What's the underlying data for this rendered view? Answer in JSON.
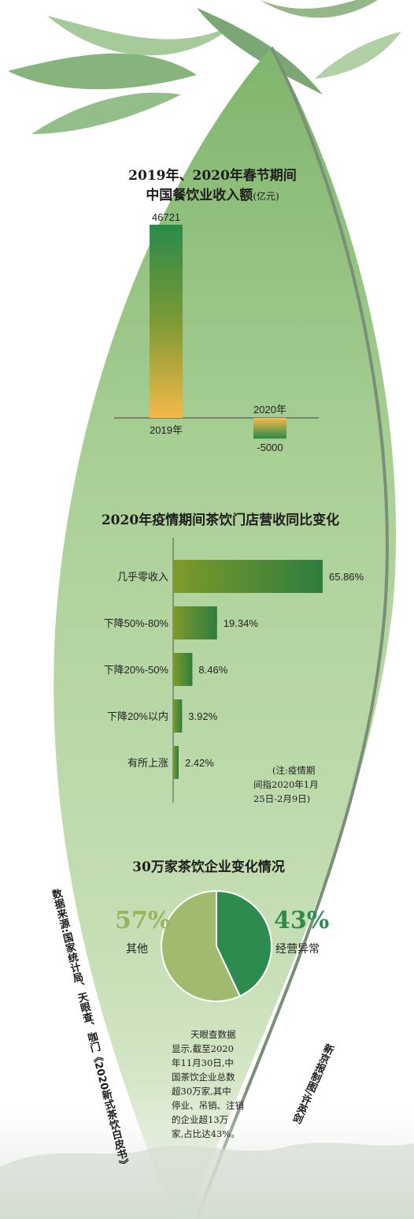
{
  "colors": {
    "leaf_light": "#d3e7c3",
    "leaf_mid": "#a9cf95",
    "bar_green": "#2a8a4a",
    "bar_yellow": "#f5b94a",
    "hbar_olive": "#7e9a2a",
    "hbar_green": "#2e7d3f",
    "pie_dark": "#2e8b50",
    "pie_light": "#a0bb6e",
    "pct_light": "#98b35c",
    "pct_dark": "#2e8b50"
  },
  "chart_data": [
    {
      "type": "bar",
      "title": "2019年、2020年春节期间",
      "subtitle": "中国餐饮业收入额",
      "unit": "(亿元)",
      "categories": [
        "2019年",
        "2020年"
      ],
      "values": [
        46721,
        -5000
      ],
      "value_labels": [
        "46721",
        "-5000"
      ]
    },
    {
      "type": "bar",
      "orientation": "horizontal",
      "title": "2020年疫情期间茶饮门店营收同比变化",
      "categories": [
        "几乎零收入",
        "下降50%-80%",
        "下降20%-50%",
        "下降20%以内",
        "有所上涨"
      ],
      "values": [
        65.86,
        19.34,
        8.46,
        3.92,
        2.42
      ],
      "value_labels": [
        "65.86%",
        "19.34%",
        "8.46%",
        "3.92%",
        "2.42%"
      ],
      "note": [
        "(注:疫情期",
        "间指2020年1月",
        "25日-2月9日)"
      ]
    },
    {
      "type": "pie",
      "title": "30万家茶饮企业变化情况",
      "categories": [
        "经营异常",
        "其他"
      ],
      "values": [
        43,
        57
      ],
      "value_labels": [
        "43%",
        "57%"
      ]
    }
  ],
  "paragraph": [
    "天眼查数据",
    "显示,截至2020",
    "年11月30日,中",
    "国茶饮企业总数",
    "超30万家,其中",
    "停业、吊销、注销",
    "的企业超13万",
    "家,占比达43%。"
  ],
  "source": "数据来源:国家统计局、天眼查、咖门《2020新式茶饮白皮书》",
  "credit": "新京报制图/许英剑"
}
